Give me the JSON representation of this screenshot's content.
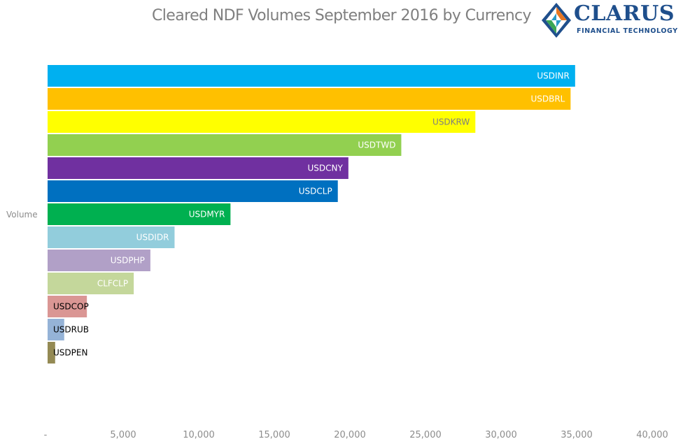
{
  "chart_data": {
    "type": "bar",
    "orientation": "horizontal",
    "title": "Cleared NDF Volumes September 2016 by Currency",
    "ylabel": "Volume",
    "xlabel": "",
    "xlim": [
      0,
      40000
    ],
    "x_ticks": [
      0,
      5000,
      10000,
      15000,
      20000,
      25000,
      30000,
      35000,
      40000
    ],
    "x_tick_labels": [
      "-",
      "5,000",
      "10,000",
      "15,000",
      "20,000",
      "25,000",
      "30,000",
      "35,000",
      "40,000"
    ],
    "grid": false,
    "legend": "none",
    "bars": [
      {
        "label": "USDINR",
        "value": 34900,
        "color": "#00b0f0",
        "label_color": "#ffffff"
      },
      {
        "label": "USDBRL",
        "value": 34600,
        "color": "#ffc000",
        "label_color": "#ffffff"
      },
      {
        "label": "USDKRW",
        "value": 28300,
        "color": "#ffff00",
        "label_color": "#7f7f7f"
      },
      {
        "label": "USDTWD",
        "value": 23400,
        "color": "#92d050",
        "label_color": "#ffffff"
      },
      {
        "label": "USDCNY",
        "value": 19900,
        "color": "#7030a0",
        "label_color": "#ffffff"
      },
      {
        "label": "USDCLP",
        "value": 19200,
        "color": "#0070c0",
        "label_color": "#ffffff"
      },
      {
        "label": "USDMYR",
        "value": 12100,
        "color": "#00b050",
        "label_color": "#ffffff"
      },
      {
        "label": "USDIDR",
        "value": 8400,
        "color": "#92cddc",
        "label_color": "#ffffff"
      },
      {
        "label": "USDPHP",
        "value": 6800,
        "color": "#b1a0c7",
        "label_color": "#ffffff"
      },
      {
        "label": "CLFCLP",
        "value": 5700,
        "color": "#c4d79b",
        "label_color": "#ffffff"
      },
      {
        "label": "USDCOP",
        "value": 2600,
        "color": "#da9694",
        "label_color": "#000000"
      },
      {
        "label": "USDRUB",
        "value": 1100,
        "color": "#95b3d7",
        "label_color": "#000000"
      },
      {
        "label": "USDPEN",
        "value": 500,
        "color": "#948a54",
        "label_color": "#000000"
      }
    ]
  },
  "logo": {
    "name": "CLARUS",
    "subtitle": "FINANCIAL TECHNOLOGY",
    "colors": {
      "navy": "#1f4f8c",
      "orange": "#e87722",
      "green": "#3aa655",
      "teal": "#2a9ac9"
    }
  }
}
